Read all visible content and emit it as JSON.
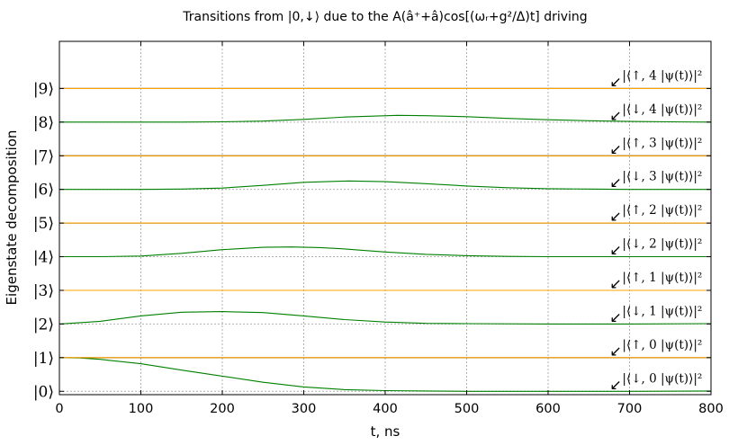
{
  "chart_data": {
    "type": "line",
    "title": "Transitions from |0,↓⟩ due to the A(â⁺+â)cos[(ωᵣ+g²/Δ)t] driving",
    "xlabel": "t, ns",
    "ylabel": "Eigenstate decomposition",
    "xlim": [
      0,
      800
    ],
    "ylim": [
      -0.1,
      10.4
    ],
    "x_ticks": [
      "0",
      "100",
      "200",
      "300",
      "400",
      "500",
      "600",
      "700",
      "800"
    ],
    "y_ticks": [
      "|0⟩",
      "|1⟩",
      "|2⟩",
      "|3⟩",
      "|4⟩",
      "|5⟩",
      "|6⟩",
      "|7⟩",
      "|8⟩",
      "|9⟩"
    ],
    "grid": true,
    "colors": {
      "orange": "#ffa500",
      "green": "#008000",
      "baseline": "#000000",
      "grid": "#b0b0b0"
    },
    "series": [
      {
        "name": "|⟨↓, 0 |ψ(t)⟩|²",
        "baseline": 0,
        "color": "#008000",
        "x": [
          0,
          25,
          50,
          100,
          150,
          200,
          250,
          300,
          350,
          400,
          450,
          500,
          600,
          700,
          800
        ],
        "y": [
          1.0,
          0.99,
          0.95,
          0.82,
          0.63,
          0.45,
          0.27,
          0.13,
          0.05,
          0.02,
          0.01,
          0.0,
          0.0,
          0.0,
          0.01
        ]
      },
      {
        "name": "|⟨↑, 0 |ψ(t)⟩|²",
        "baseline": 1,
        "color": "#ffa500",
        "x": [
          0,
          800
        ],
        "y": [
          0,
          0
        ]
      },
      {
        "name": "|⟨↓, 1 |ψ(t)⟩|²",
        "baseline": 2,
        "color": "#008000",
        "x": [
          0,
          50,
          100,
          150,
          200,
          250,
          300,
          350,
          400,
          450,
          500,
          600,
          700,
          800
        ],
        "y": [
          0.0,
          0.08,
          0.24,
          0.35,
          0.37,
          0.34,
          0.24,
          0.13,
          0.06,
          0.02,
          0.01,
          0.0,
          0.0,
          0.01
        ]
      },
      {
        "name": "|⟨↑, 1 |ψ(t)⟩|²",
        "baseline": 3,
        "color": "#ffa500",
        "x": [
          0,
          800
        ],
        "y": [
          0,
          0
        ]
      },
      {
        "name": "|⟨↓, 2 |ψ(t)⟩|²",
        "baseline": 4,
        "color": "#008000",
        "x": [
          0,
          50,
          100,
          150,
          200,
          250,
          285,
          320,
          350,
          400,
          450,
          500,
          550,
          600,
          700,
          800
        ],
        "y": [
          0.0,
          0.0,
          0.02,
          0.1,
          0.21,
          0.28,
          0.29,
          0.27,
          0.23,
          0.14,
          0.07,
          0.03,
          0.01,
          0.0,
          0.0,
          0.0
        ]
      },
      {
        "name": "|⟨↑, 2 |ψ(t)⟩|²",
        "baseline": 5,
        "color": "#ffa500",
        "x": [
          0,
          800
        ],
        "y": [
          0,
          0
        ]
      },
      {
        "name": "|⟨↓, 3 |ψ(t)⟩|²",
        "baseline": 6,
        "color": "#008000",
        "x": [
          0,
          100,
          150,
          200,
          250,
          300,
          355,
          400,
          450,
          500,
          550,
          600,
          650,
          700,
          800
        ],
        "y": [
          0.0,
          0.0,
          0.01,
          0.04,
          0.12,
          0.21,
          0.25,
          0.23,
          0.17,
          0.1,
          0.05,
          0.02,
          0.01,
          0.0,
          0.0
        ]
      },
      {
        "name": "|⟨↑, 3 |ψ(t)⟩|²",
        "baseline": 7,
        "color": "#ffa500",
        "x": [
          0,
          800
        ],
        "y": [
          0,
          0
        ]
      },
      {
        "name": "|⟨↓, 4 |ψ(t)⟩|²",
        "baseline": 8,
        "color": "#008000",
        "x": [
          0,
          150,
          200,
          250,
          300,
          350,
          415,
          450,
          500,
          550,
          600,
          650,
          700,
          750,
          800
        ],
        "y": [
          0.0,
          0.0,
          0.01,
          0.03,
          0.08,
          0.15,
          0.2,
          0.19,
          0.16,
          0.11,
          0.07,
          0.04,
          0.02,
          0.01,
          0.0
        ]
      },
      {
        "name": "|⟨↑, 4 |ψ(t)⟩|²",
        "baseline": 9,
        "color": "#ffa500",
        "x": [
          0,
          800
        ],
        "y": [
          0,
          0
        ]
      }
    ],
    "annotations": {
      "x": 680,
      "arrow_glyph": "↙",
      "labels": [
        "|⟨↓, 0 |ψ(t)⟩|²",
        "|⟨↑, 0 |ψ(t)⟩|²",
        "|⟨↓, 1 |ψ(t)⟩|²",
        "|⟨↑, 1 |ψ(t)⟩|²",
        "|⟨↓, 2 |ψ(t)⟩|²",
        "|⟨↑, 2 |ψ(t)⟩|²",
        "|⟨↓, 3 |ψ(t)⟩|²",
        "|⟨↑, 3 |ψ(t)⟩|²",
        "|⟨↓, 4 |ψ(t)⟩|²",
        "|⟨↑, 4 |ψ(t)⟩|²"
      ]
    }
  }
}
